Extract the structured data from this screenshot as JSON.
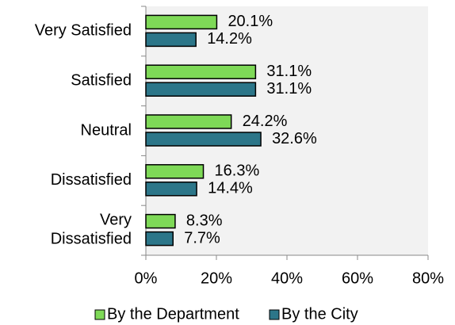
{
  "chart_data": {
    "type": "bar",
    "orientation": "horizontal",
    "categories": [
      "Very Satisfied",
      "Satisfied",
      "Neutral",
      "Dissatisfied",
      "Very\nDissatisfied"
    ],
    "series": [
      {
        "name": "By the Department",
        "color": "#7ed957",
        "values": [
          20.1,
          31.1,
          24.2,
          16.3,
          8.3
        ],
        "value_labels": [
          "20.1%",
          "31.1%",
          "24.2%",
          "16.3%",
          "8.3%"
        ]
      },
      {
        "name": "By the City",
        "color": "#2c7689",
        "values": [
          14.2,
          31.1,
          32.6,
          14.4,
          7.7
        ],
        "value_labels": [
          "14.2%",
          "31.1%",
          "32.6%",
          "14.4%",
          "7.7%"
        ]
      }
    ],
    "xlim": [
      0,
      80
    ],
    "xticks": [
      {
        "value": 0,
        "label": "0%"
      },
      {
        "value": 20,
        "label": "20%"
      },
      {
        "value": 40,
        "label": "40%"
      },
      {
        "value": 60,
        "label": "60%"
      },
      {
        "value": 80,
        "label": "80%"
      }
    ],
    "grid": false,
    "legend": "bottom"
  }
}
